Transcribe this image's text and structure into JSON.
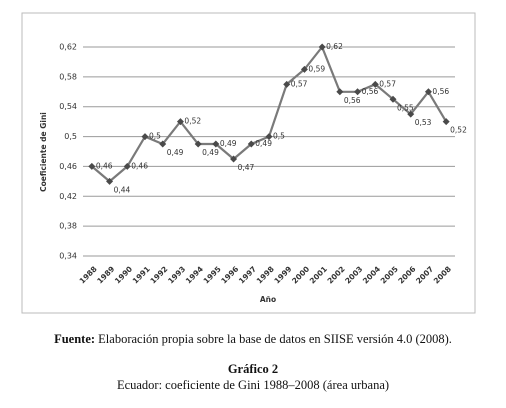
{
  "chart_data": {
    "type": "line",
    "y_label": "Coeficiente de Gini",
    "x_label": "Año",
    "categories": [
      "1988",
      "1989",
      "1990",
      "1991",
      "1992",
      "1993",
      "1994",
      "1995",
      "1996",
      "1997",
      "1998",
      "1999",
      "2000",
      "2001",
      "2002",
      "2003",
      "2004",
      "2005",
      "2006",
      "2007",
      "2008"
    ],
    "values": [
      0.46,
      0.44,
      0.46,
      0.5,
      0.49,
      0.52,
      0.49,
      0.49,
      0.47,
      0.49,
      0.5,
      0.57,
      0.59,
      0.62,
      0.56,
      0.56,
      0.57,
      0.55,
      0.53,
      0.56,
      0.52
    ],
    "value_labels": [
      "0,46",
      "0,44",
      "0,46",
      "0,5",
      "0,49",
      "0,52",
      "0,49",
      "0,49",
      "0,47",
      "0,49",
      "0,5",
      "0,57",
      "0,59",
      "0,62",
      "0,56",
      "0,56",
      "0,57",
      "0,55",
      "0,53",
      "0,56",
      "0,52"
    ],
    "color": "#7a7a7a",
    "marker_color": "#4a4a4a",
    "ylim": [
      0.34,
      0.62
    ],
    "yticks": [
      {
        "value": 0.34,
        "label": "0,34"
      },
      {
        "value": 0.38,
        "label": "0,38"
      },
      {
        "value": 0.42,
        "label": "0,42"
      },
      {
        "value": 0.46,
        "label": "0,46"
      },
      {
        "value": 0.5,
        "label": "0,5"
      },
      {
        "value": 0.54,
        "label": "0,54"
      },
      {
        "value": 0.58,
        "label": "0,58"
      },
      {
        "value": 0.62,
        "label": "0,62"
      }
    ],
    "grid": true
  },
  "caption": {
    "source_label": "Fuente:",
    "source_text": "Elaboración propia sobre la base de datos en SIISE versión 4.0 (2008).",
    "figure_number": "Gráfico 2",
    "figure_title": "Ecuador: coeficiente de Gini 1988–2008 (área urbana)"
  }
}
